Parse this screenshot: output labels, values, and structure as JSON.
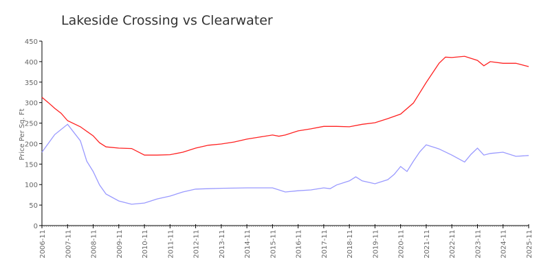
{
  "chart_data": {
    "type": "line",
    "title": "Lakeside Crossing vs Clearwater",
    "xlabel": "",
    "ylabel": "Price Per Sq. Ft",
    "ylim": [
      0,
      450
    ],
    "yticks": [
      "0",
      "50",
      "100",
      "150",
      "200",
      "250",
      "300",
      "350",
      "400",
      "450"
    ],
    "xticks": [
      "2006-11",
      "2007-11",
      "2008-11",
      "2009-11",
      "2010-11",
      "2011-11",
      "2012-11",
      "2013-11",
      "2014-11",
      "2015-11",
      "2016-11",
      "2017-11",
      "2018-11",
      "2019-11",
      "2020-11",
      "2021-11",
      "2022-11",
      "2023-11",
      "2024-11",
      "2025-11"
    ],
    "grid": false,
    "series": [
      {
        "color": "#ff2020",
        "points": [
          [
            "2006-11",
            313
          ],
          [
            "2007-02",
            300
          ],
          [
            "2007-05",
            286
          ],
          [
            "2007-08",
            274
          ],
          [
            "2007-11",
            256
          ],
          [
            "2008-05",
            241
          ],
          [
            "2008-11",
            219
          ],
          [
            "2009-02",
            202
          ],
          [
            "2009-05",
            192
          ],
          [
            "2009-11",
            189
          ],
          [
            "2010-05",
            188
          ],
          [
            "2010-11",
            172
          ],
          [
            "2011-05",
            172
          ],
          [
            "2011-11",
            173
          ],
          [
            "2012-05",
            179
          ],
          [
            "2012-11",
            189
          ],
          [
            "2013-05",
            196
          ],
          [
            "2013-11",
            199
          ],
          [
            "2014-05",
            204
          ],
          [
            "2014-11",
            211
          ],
          [
            "2015-05",
            216
          ],
          [
            "2015-11",
            221
          ],
          [
            "2016-02",
            218
          ],
          [
            "2016-05",
            221
          ],
          [
            "2016-11",
            231
          ],
          [
            "2017-05",
            236
          ],
          [
            "2017-11",
            242
          ],
          [
            "2018-05",
            242
          ],
          [
            "2018-11",
            241
          ],
          [
            "2019-05",
            247
          ],
          [
            "2019-11",
            251
          ],
          [
            "2020-05",
            261
          ],
          [
            "2020-11",
            272
          ],
          [
            "2021-05",
            299
          ],
          [
            "2021-11",
            349
          ],
          [
            "2022-05",
            396
          ],
          [
            "2022-08",
            411
          ],
          [
            "2022-11",
            410
          ],
          [
            "2023-05",
            413
          ],
          [
            "2023-11",
            403
          ],
          [
            "2024-02",
            390
          ],
          [
            "2024-05",
            400
          ],
          [
            "2024-11",
            396
          ],
          [
            "2025-05",
            396
          ],
          [
            "2025-11",
            388
          ]
        ]
      },
      {
        "color": "#9999ff",
        "points": [
          [
            "2006-11",
            179
          ],
          [
            "2007-05",
            222
          ],
          [
            "2007-11",
            247
          ],
          [
            "2008-05",
            207
          ],
          [
            "2008-08",
            157
          ],
          [
            "2008-11",
            132
          ],
          [
            "2009-02",
            99
          ],
          [
            "2009-05",
            77
          ],
          [
            "2009-11",
            60
          ],
          [
            "2010-05",
            52
          ],
          [
            "2010-11",
            55
          ],
          [
            "2011-05",
            65
          ],
          [
            "2011-11",
            72
          ],
          [
            "2012-05",
            82
          ],
          [
            "2012-11",
            89
          ],
          [
            "2013-05",
            90
          ],
          [
            "2013-11",
            91
          ],
          [
            "2014-11",
            92
          ],
          [
            "2015-11",
            92
          ],
          [
            "2016-05",
            82
          ],
          [
            "2016-11",
            85
          ],
          [
            "2017-05",
            87
          ],
          [
            "2017-11",
            92
          ],
          [
            "2018-02",
            90
          ],
          [
            "2018-05",
            99
          ],
          [
            "2018-11",
            109
          ],
          [
            "2019-02",
            119
          ],
          [
            "2019-05",
            109
          ],
          [
            "2019-11",
            102
          ],
          [
            "2020-05",
            112
          ],
          [
            "2020-08",
            125
          ],
          [
            "2020-11",
            144
          ],
          [
            "2021-02",
            132
          ],
          [
            "2021-05",
            157
          ],
          [
            "2021-08",
            180
          ],
          [
            "2021-11",
            197
          ],
          [
            "2022-05",
            187
          ],
          [
            "2022-11",
            172
          ],
          [
            "2023-05",
            155
          ],
          [
            "2023-08",
            174
          ],
          [
            "2023-11",
            189
          ],
          [
            "2024-02",
            172
          ],
          [
            "2024-05",
            176
          ],
          [
            "2024-11",
            179
          ],
          [
            "2025-05",
            169
          ],
          [
            "2025-11",
            171
          ]
        ]
      }
    ]
  }
}
